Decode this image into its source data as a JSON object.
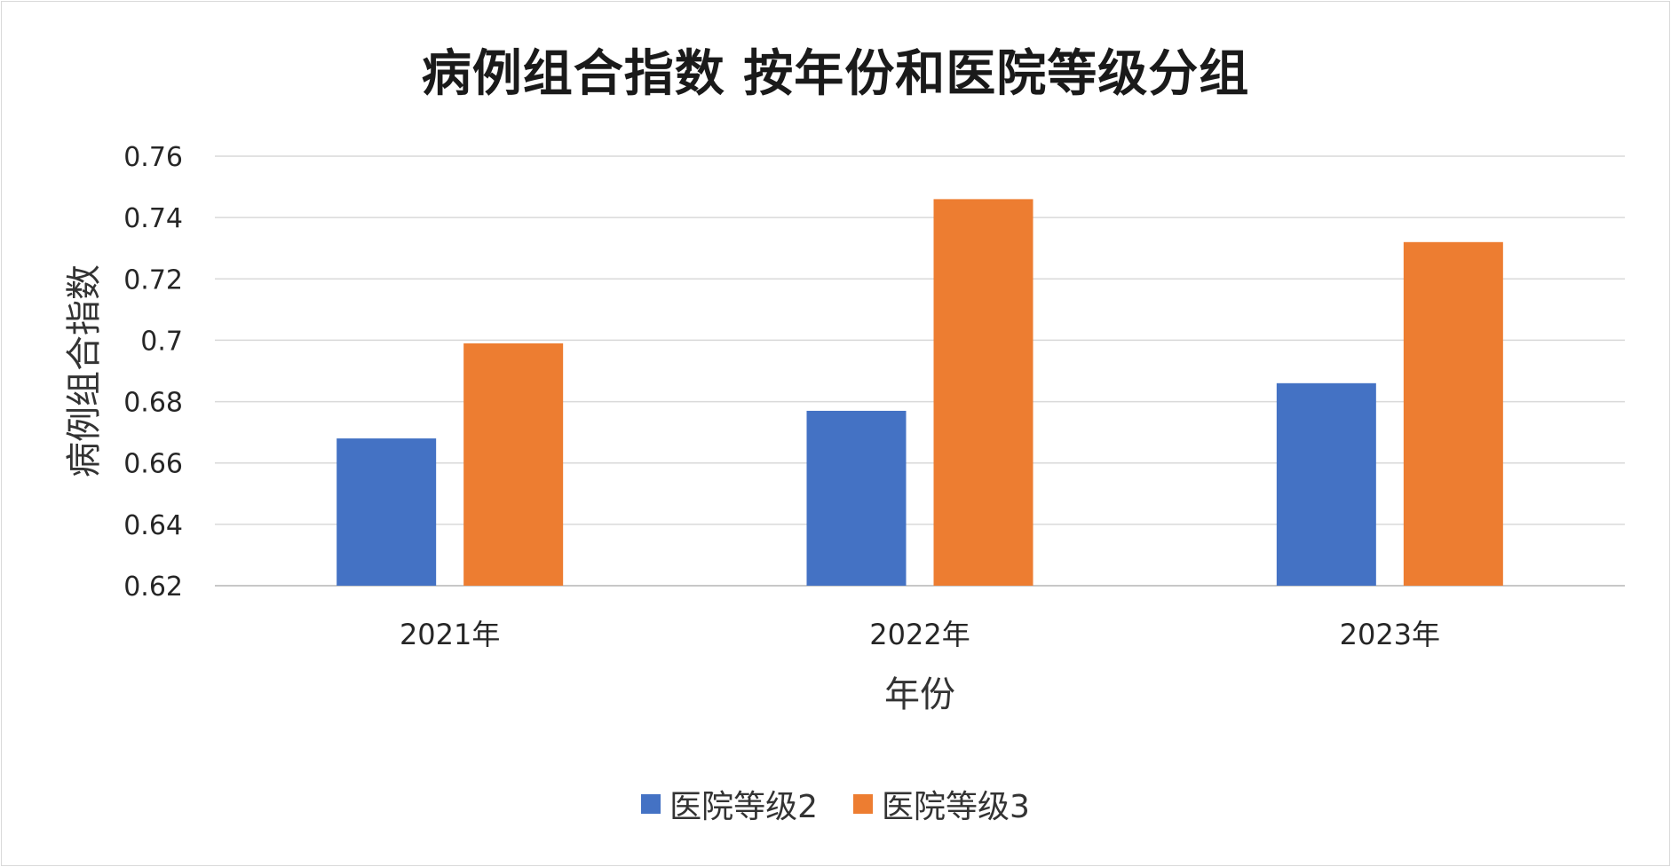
{
  "chart_data": {
    "type": "bar",
    "title": "病例组合指数 按年份和医院等级分组",
    "xlabel": "年份",
    "ylabel": "病例组合指数",
    "categories": [
      "2021年",
      "2022年",
      "2023年"
    ],
    "series": [
      {
        "name": "医院等级2",
        "color": "#4472C4",
        "values": [
          0.668,
          0.677,
          0.686
        ]
      },
      {
        "name": "医院等级3",
        "color": "#ED7D31",
        "values": [
          0.699,
          0.746,
          0.732
        ]
      }
    ],
    "ylim": [
      0.62,
      0.76
    ],
    "yticks": [
      "0.62",
      "0.64",
      "0.66",
      "0.68",
      "0.7",
      "0.72",
      "0.74",
      "0.76"
    ],
    "grid": true,
    "legend_position": "bottom"
  }
}
